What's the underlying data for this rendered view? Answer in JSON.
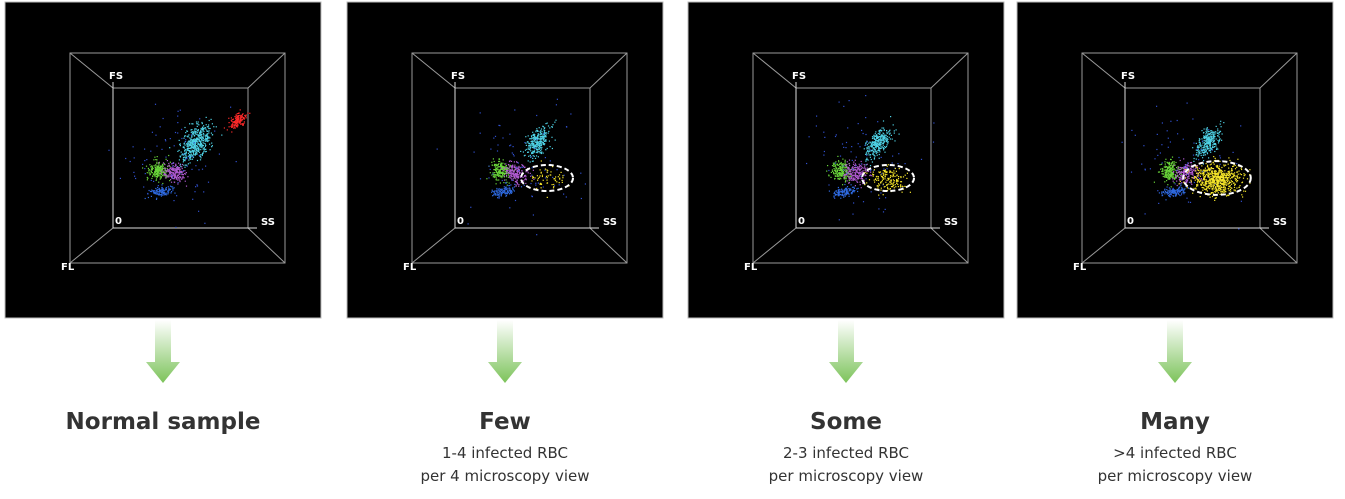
{
  "panels": [
    {
      "axis_fs": "FS",
      "axis_ss": "SS",
      "axis_fl": "FL",
      "axis_zero": "0",
      "title": "Normal sample",
      "lines": []
    },
    {
      "axis_fs": "FS",
      "axis_ss": "SS",
      "axis_fl": "FL",
      "axis_zero": "0",
      "title": "Few",
      "lines": [
        "1-4 infected RBC",
        "per 4 microscopy view"
      ]
    },
    {
      "axis_fs": "FS",
      "axis_ss": "SS",
      "axis_fl": "FL",
      "axis_zero": "0",
      "title": "Some",
      "lines": [
        "2-3 infected RBC",
        "per microscopy view"
      ]
    },
    {
      "axis_fs": "FS",
      "axis_ss": "SS",
      "axis_fl": "FL",
      "axis_zero": "0",
      "title": "Many",
      "lines": [
        ">4 infected RBC",
        "per microscopy view"
      ]
    }
  ]
}
